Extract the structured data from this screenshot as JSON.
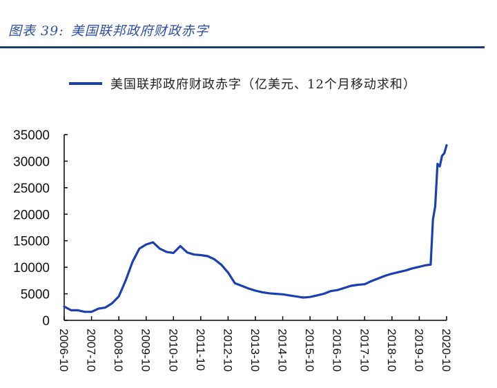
{
  "figure": {
    "number": "图表 39:",
    "title": "美国联邦政府财政赤字"
  },
  "colors": {
    "title": "#2e4fa8",
    "rule": "#1f3b73",
    "series": "#1a3fb0",
    "axis": "#000000"
  },
  "chart_data": {
    "type": "line",
    "title": "美国联邦政府财政赤字",
    "xlabel": "",
    "ylabel": "",
    "ylim": [
      0,
      35000
    ],
    "yticks": [
      0,
      5000,
      10000,
      15000,
      20000,
      25000,
      30000,
      35000
    ],
    "xticks": [
      "2006-10",
      "2007-10",
      "2008-10",
      "2009-10",
      "2010-10",
      "2011-10",
      "2012-10",
      "2013-10",
      "2014-10",
      "2015-10",
      "2016-10",
      "2017-10",
      "2018-10",
      "2019-10",
      "2020-10"
    ],
    "grid": false,
    "legend_position": "top",
    "series": [
      {
        "name": "美国联邦政府财政赤字（亿美元、12个月移动求和）",
        "x": [
          "2006-10",
          "2007-01",
          "2007-04",
          "2007-07",
          "2007-10",
          "2008-01",
          "2008-04",
          "2008-07",
          "2008-10",
          "2009-01",
          "2009-04",
          "2009-07",
          "2009-10",
          "2010-01",
          "2010-04",
          "2010-07",
          "2010-10",
          "2011-01",
          "2011-04",
          "2011-07",
          "2011-10",
          "2012-01",
          "2012-04",
          "2012-07",
          "2012-10",
          "2013-01",
          "2013-04",
          "2013-07",
          "2013-10",
          "2014-01",
          "2014-04",
          "2014-07",
          "2014-10",
          "2015-01",
          "2015-04",
          "2015-07",
          "2015-10",
          "2016-01",
          "2016-04",
          "2016-07",
          "2016-10",
          "2017-01",
          "2017-04",
          "2017-07",
          "2017-10",
          "2018-01",
          "2018-04",
          "2018-07",
          "2018-10",
          "2019-01",
          "2019-04",
          "2019-07",
          "2019-10",
          "2020-01",
          "2020-03",
          "2020-04",
          "2020-05",
          "2020-06",
          "2020-07",
          "2020-08",
          "2020-09",
          "2020-10"
        ],
        "values": [
          2600,
          1900,
          1900,
          1600,
          1600,
          2200,
          2400,
          3200,
          4500,
          7500,
          11000,
          13500,
          14300,
          14700,
          13500,
          12900,
          12700,
          14000,
          12800,
          12400,
          12300,
          12100,
          11500,
          10500,
          9000,
          7000,
          6500,
          6000,
          5600,
          5300,
          5100,
          5000,
          4900,
          4700,
          4500,
          4300,
          4400,
          4700,
          5000,
          5500,
          5700,
          6100,
          6500,
          6700,
          6800,
          7400,
          7900,
          8400,
          8800,
          9100,
          9400,
          9800,
          10100,
          10400,
          10500,
          19000,
          21500,
          29500,
          29000,
          31000,
          31500,
          33000
        ]
      }
    ]
  },
  "legend": {
    "label": "美国联邦政府财政赤字（亿美元、12个月移动求和）"
  }
}
